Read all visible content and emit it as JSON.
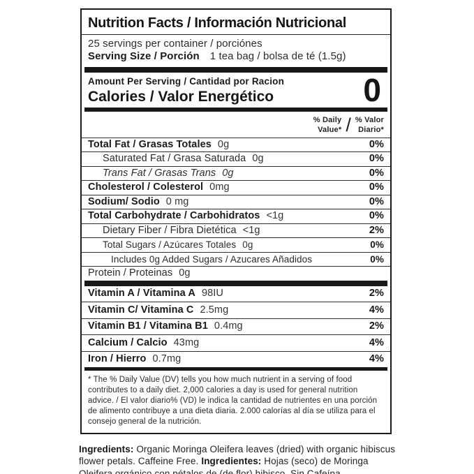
{
  "panel": {
    "title": "Nutrition Facts / Información Nutricional",
    "servings_per_container": "25 servings per container / porciónes",
    "serving_size_label": "Serving Size / Porción",
    "serving_size_value": "1 tea bag / bolsa de té (1.5g)",
    "amount_per_serving": "Amount Per Serving / Cantidad por Racion",
    "calories_label": "Calories / Valor Energético",
    "calories_value": "0",
    "dv_header_en": "% Daily\nValue*",
    "dv_header_slash": "/",
    "dv_header_es": "% Valor\nDiario*",
    "footnote": "* The % Daily Value (DV) tells you how much nutrient in a serving of food contributes to a daily diet. 2,000 calories a day is used for general nutrition advice. / El valor diario% (VD) le indica la cantidad de nutrientes en una porción de alimento contribuye a una dieta diaria. 2.000 calorías al día se utiliza para el consejo general de la nutrición."
  },
  "nutrients": [
    {
      "label": "Total Fat / Grasas Totales",
      "amount": "0g",
      "dv": "0%"
    },
    {
      "label": "Saturated Fat / Grasa Saturada",
      "amount": "0g",
      "dv": "0%"
    },
    {
      "label": "Trans Fat / Grasas Trans",
      "amount": "0g",
      "dv": "0%"
    },
    {
      "label": "Cholesterol / Colesterol",
      "amount": "0mg",
      "dv": "0%"
    },
    {
      "label": "Sodium/ Sodio",
      "amount": "0 mg",
      "dv": "0%"
    },
    {
      "label": "Total Carbohydrate / Carbohidratos",
      "amount": "<1g",
      "dv": "0%"
    },
    {
      "label": "Dietary Fiber / Fibra Dietética",
      "amount": "<1g",
      "dv": "2%"
    },
    {
      "label": "Total Sugars / Azúcares Totales",
      "amount": "0g",
      "dv": "0%"
    },
    {
      "label": "Includes 0g Added Sugars / Azucares Añadidos",
      "amount": "",
      "dv": "0%"
    },
    {
      "label": "Protein / Proteinas",
      "amount": "0g",
      "dv": ""
    }
  ],
  "vitamins": [
    {
      "label": "Vitamin A / Vitamina A",
      "amount": "98IU",
      "dv": "2%"
    },
    {
      "label": "Vitamin C/ Vitamina C",
      "amount": "2.5mg",
      "dv": "4%"
    },
    {
      "label": "Vitamin B1 / Vitamina B1",
      "amount": "0.4mg",
      "dv": "2%"
    },
    {
      "label": "Calcium / Calcio",
      "amount": "43mg",
      "dv": "4%"
    },
    {
      "label": "Iron / Hierro",
      "amount": "0.7mg",
      "dv": "4%"
    }
  ],
  "ingredients": {
    "en_label": "Ingredients:",
    "en_text": " Organic Moringa Oleifera leaves (dried) with organic hibiscus flower petals. Caffeine Free. ",
    "es_label": "Ingredientes:",
    "es_text": " Hojas (seco) de Moringa Oleifera orgánico con pétalos de (de flor) hibisco. Sin Cafeína."
  }
}
